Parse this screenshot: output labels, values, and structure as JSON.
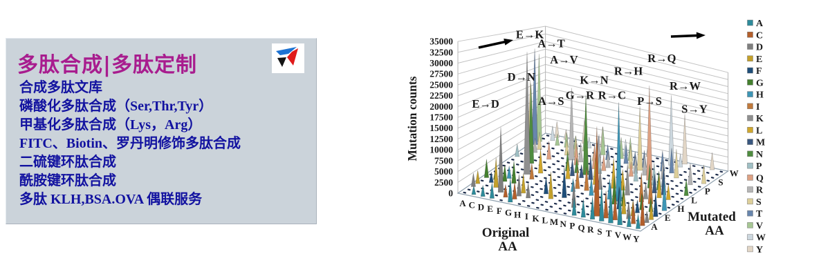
{
  "page": {
    "background": "#ffffff"
  },
  "panel": {
    "background": "#cbd3da",
    "title": {
      "text": "多肽合成|多肽定制",
      "color": "#a81c8e"
    },
    "services": [
      "合成多肽文库",
      "磷酸化多肽合成（Ser,Thr,Tyr）",
      "甲基化多肽合成（Lys，Arg）",
      "FITC、Biotin、罗丹明修饰多肽合成",
      "二硫键环肽合成",
      "酰胺键环肽合成",
      "多肽 KLH,BSA.OVA 偶联服务"
    ],
    "services_color": "#1212a0",
    "logo": {
      "colors": {
        "blue": "#1d72d2",
        "red": "#e01b1b",
        "black": "#141414"
      }
    }
  },
  "chart_data": {
    "type": "bar",
    "projection": "3d-spike",
    "title": "",
    "ylabel": "Mutation counts",
    "xlabel": "Original AA",
    "zlabel": "Mutated AA",
    "xlabel_words": [
      "Original",
      "AA"
    ],
    "zlabel_words": [
      "Mutated",
      "AA"
    ],
    "ylim": [
      0,
      35000
    ],
    "ytick_step": 2500,
    "x_categories": [
      "A",
      "C",
      "D",
      "E",
      "F",
      "G",
      "H",
      "I",
      "K",
      "L",
      "M",
      "N",
      "P",
      "Q",
      "R",
      "S",
      "T",
      "V",
      "W",
      "Y"
    ],
    "z_categories": [
      "A",
      "C",
      "D",
      "E",
      "F",
      "G",
      "H",
      "I",
      "K",
      "L",
      "M",
      "N",
      "P",
      "Q",
      "R",
      "S",
      "T",
      "V",
      "W",
      "Y"
    ],
    "z_tick_labels_shown": [
      "A",
      "E",
      "H",
      "L",
      "P",
      "S",
      "W"
    ],
    "grid": true,
    "direction_arrows": [
      {
        "side": "left"
      },
      {
        "side": "right"
      }
    ],
    "annotations": [
      "E→K",
      "A→T",
      "A→V",
      "D→N",
      "K→N",
      "R→Q",
      "R→H",
      "R→C",
      "R→W",
      "G→R",
      "A→S",
      "P→S",
      "S→Y",
      "E→D"
    ],
    "legend": {
      "position": "right",
      "entries": [
        {
          "label": "A",
          "color": "#2e8b9b"
        },
        {
          "label": "C",
          "color": "#b35f2b"
        },
        {
          "label": "D",
          "color": "#7f7f7f"
        },
        {
          "label": "E",
          "color": "#c3a02b"
        },
        {
          "label": "F",
          "color": "#1f4e79"
        },
        {
          "label": "G",
          "color": "#44802e"
        },
        {
          "label": "H",
          "color": "#3d95b5"
        },
        {
          "label": "I",
          "color": "#c17a3c"
        },
        {
          "label": "K",
          "color": "#8f8f8f"
        },
        {
          "label": "L",
          "color": "#cfa72e"
        },
        {
          "label": "M",
          "color": "#39577f"
        },
        {
          "label": "N",
          "color": "#4f8c3f"
        },
        {
          "label": "P",
          "color": "#9fbfc4"
        },
        {
          "label": "Q",
          "color": "#dda183"
        },
        {
          "label": "R",
          "color": "#b5b5b5"
        },
        {
          "label": "S",
          "color": "#ddcf9a"
        },
        {
          "label": "T",
          "color": "#6886ad"
        },
        {
          "label": "V",
          "color": "#a6c693"
        },
        {
          "label": "W",
          "color": "#ccd7de"
        },
        {
          "label": "Y",
          "color": "#e2d6c6"
        }
      ]
    },
    "spikes": [
      [
        "A",
        "T",
        29000,
        1
      ],
      [
        "A",
        "V",
        27000,
        1
      ],
      [
        "A",
        "S",
        20000,
        1
      ],
      [
        "D",
        "N",
        22000,
        1
      ],
      [
        "E",
        "K",
        32000,
        1
      ],
      [
        "E",
        "D",
        15500,
        1
      ],
      [
        "G",
        "R",
        21000,
        1
      ],
      [
        "K",
        "N",
        22000,
        1
      ],
      [
        "P",
        "S",
        19000,
        1
      ],
      [
        "R",
        "Q",
        27000,
        1
      ],
      [
        "R",
        "H",
        25000,
        1
      ],
      [
        "R",
        "C",
        21000,
        1
      ],
      [
        "R",
        "W",
        22000,
        1
      ],
      [
        "S",
        "Y",
        16000,
        1
      ],
      [
        "C",
        "A",
        2000
      ],
      [
        "D",
        "A",
        2600
      ],
      [
        "E",
        "A",
        3600
      ],
      [
        "G",
        "A",
        5600
      ],
      [
        "P",
        "A",
        4200
      ],
      [
        "Q",
        "A",
        4200
      ],
      [
        "R",
        "A",
        5200
      ],
      [
        "S",
        "A",
        8200
      ],
      [
        "T",
        "A",
        9200
      ],
      [
        "V",
        "A",
        8600
      ],
      [
        "W",
        "A",
        3000
      ],
      [
        "Y",
        "A",
        3400
      ],
      [
        "F",
        "C",
        3000
      ],
      [
        "G",
        "C",
        4000
      ],
      [
        "S",
        "C",
        6400
      ],
      [
        "T",
        "C",
        6000
      ],
      [
        "W",
        "C",
        5200
      ],
      [
        "Y",
        "C",
        7200
      ],
      [
        "A",
        "D",
        3200
      ],
      [
        "G",
        "D",
        5200
      ],
      [
        "H",
        "D",
        3600
      ],
      [
        "N",
        "D",
        6200
      ],
      [
        "R",
        "D",
        3600
      ],
      [
        "S",
        "D",
        3000
      ],
      [
        "V",
        "D",
        4200
      ],
      [
        "Y",
        "D",
        2800
      ],
      [
        "A",
        "E",
        3200
      ],
      [
        "D",
        "E",
        7200
      ],
      [
        "G",
        "E",
        4800
      ],
      [
        "K",
        "E",
        6600
      ],
      [
        "Q",
        "E",
        6200
      ],
      [
        "T",
        "E",
        5200
      ],
      [
        "V",
        "E",
        3800
      ],
      [
        "Y",
        "E",
        4200
      ],
      [
        "C",
        "F",
        2600
      ],
      [
        "I",
        "F",
        4200
      ],
      [
        "L",
        "F",
        7600
      ],
      [
        "S",
        "F",
        5600
      ],
      [
        "V",
        "F",
        3200
      ],
      [
        "Y",
        "F",
        6200
      ],
      [
        "A",
        "G",
        4600
      ],
      [
        "C",
        "G",
        3200
      ],
      [
        "D",
        "G",
        4200
      ],
      [
        "E",
        "G",
        5600
      ],
      [
        "R",
        "G",
        7200
      ],
      [
        "S",
        "G",
        5200
      ],
      [
        "V",
        "G",
        4200
      ],
      [
        "W",
        "G",
        3600
      ],
      [
        "D",
        "H",
        3200
      ],
      [
        "L",
        "H",
        3400
      ],
      [
        "N",
        "H",
        4600
      ],
      [
        "Q",
        "H",
        5200
      ],
      [
        "Y",
        "H",
        8200
      ],
      [
        "F",
        "I",
        4200
      ],
      [
        "L",
        "I",
        5600
      ],
      [
        "M",
        "I",
        6200
      ],
      [
        "N",
        "I",
        3200
      ],
      [
        "T",
        "I",
        7600
      ],
      [
        "V",
        "I",
        9200
      ],
      [
        "N",
        "K",
        5600
      ],
      [
        "Q",
        "K",
        6200
      ],
      [
        "R",
        "K",
        8200
      ],
      [
        "T",
        "K",
        4200
      ],
      [
        "F",
        "L",
        6600
      ],
      [
        "I",
        "L",
        5200
      ],
      [
        "M",
        "L",
        7200
      ],
      [
        "P",
        "L",
        8200
      ],
      [
        "Q",
        "L",
        5600
      ],
      [
        "V",
        "L",
        6200
      ],
      [
        "W",
        "L",
        4200
      ],
      [
        "I",
        "M",
        4600
      ],
      [
        "K",
        "M",
        3600
      ],
      [
        "L",
        "M",
        6600
      ],
      [
        "T",
        "M",
        5200
      ],
      [
        "V",
        "M",
        7600
      ],
      [
        "H",
        "N",
        5600
      ],
      [
        "I",
        "N",
        4200
      ],
      [
        "S",
        "N",
        6600
      ],
      [
        "T",
        "N",
        5200
      ],
      [
        "Y",
        "N",
        4600
      ],
      [
        "A",
        "P",
        3600
      ],
      [
        "L",
        "P",
        5600
      ],
      [
        "Q",
        "P",
        4600
      ],
      [
        "S",
        "P",
        6200
      ],
      [
        "T",
        "P",
        4200
      ],
      [
        "E",
        "Q",
        5200
      ],
      [
        "H",
        "Q",
        6200
      ],
      [
        "K",
        "Q",
        7200
      ],
      [
        "L",
        "Q",
        4600
      ],
      [
        "P",
        "Q",
        4200
      ],
      [
        "C",
        "R",
        4200
      ],
      [
        "H",
        "R",
        5600
      ],
      [
        "K",
        "R",
        9200
      ],
      [
        "L",
        "R",
        4600
      ],
      [
        "P",
        "R",
        5200
      ],
      [
        "Q",
        "R",
        6600
      ],
      [
        "S",
        "R",
        5600
      ],
      [
        "W",
        "R",
        6200
      ],
      [
        "C",
        "S",
        5200
      ],
      [
        "F",
        "S",
        4600
      ],
      [
        "G",
        "S",
        6200
      ],
      [
        "I",
        "S",
        3600
      ],
      [
        "N",
        "S",
        7200
      ],
      [
        "T",
        "S",
        8600
      ],
      [
        "Y",
        "S",
        5600
      ],
      [
        "I",
        "T",
        6600
      ],
      [
        "K",
        "T",
        4600
      ],
      [
        "M",
        "T",
        5600
      ],
      [
        "N",
        "T",
        4200
      ],
      [
        "P",
        "T",
        5200
      ],
      [
        "R",
        "T",
        6200
      ],
      [
        "S",
        "T",
        7600
      ],
      [
        "D",
        "V",
        3600
      ],
      [
        "E",
        "V",
        4600
      ],
      [
        "F",
        "V",
        4200
      ],
      [
        "G",
        "V",
        5600
      ],
      [
        "I",
        "V",
        8600
      ],
      [
        "L",
        "V",
        6600
      ],
      [
        "M",
        "V",
        7200
      ],
      [
        "C",
        "W",
        4600
      ],
      [
        "G",
        "W",
        3600
      ],
      [
        "L",
        "W",
        5200
      ],
      [
        "S",
        "W",
        4200
      ],
      [
        "C",
        "Y",
        5200
      ],
      [
        "D",
        "Y",
        3200
      ],
      [
        "F",
        "Y",
        7600
      ],
      [
        "H",
        "Y",
        6600
      ],
      [
        "N",
        "Y",
        4200
      ],
      [
        "W",
        "Y",
        5600
      ]
    ]
  }
}
